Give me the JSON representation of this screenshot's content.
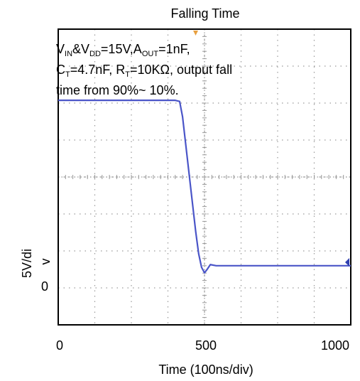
{
  "chart_data": {
    "type": "line",
    "title": "Falling Time",
    "xlabel": "Time (100ns/div)",
    "ylabel": "5V/div",
    "x_ticks": [
      "0",
      "500",
      "1000"
    ],
    "y_ticks": [
      "0"
    ],
    "xlim": [
      0,
      1000
    ],
    "ylim": [
      -1.1,
      4.3
    ],
    "grid": true,
    "annotation": {
      "line1": [
        "V",
        "IN",
        "&V",
        "DD",
        "=15V,A",
        "OUT",
        "=1nF,"
      ],
      "line2": [
        "C",
        "T",
        "=4.7nF, R",
        "T",
        "=10KΩ, output fall"
      ],
      "line3": "time from 90%~ 10%."
    },
    "series": [
      {
        "color": "#4a55c8",
        "points": [
          [
            0,
            3.0
          ],
          [
            40,
            3.0
          ],
          [
            80,
            3.0
          ],
          [
            120,
            3.0
          ],
          [
            160,
            3.0
          ],
          [
            200,
            3.0
          ],
          [
            240,
            3.0
          ],
          [
            280,
            3.0
          ],
          [
            320,
            3.0
          ],
          [
            360,
            3.0
          ],
          [
            400,
            3.0
          ],
          [
            415,
            2.98
          ],
          [
            425,
            2.7
          ],
          [
            440,
            2.0
          ],
          [
            455,
            1.3
          ],
          [
            470,
            0.6
          ],
          [
            480,
            0.2
          ],
          [
            490,
            -0.05
          ],
          [
            500,
            -0.15
          ],
          [
            510,
            -0.08
          ],
          [
            520,
            0.0
          ],
          [
            540,
            -0.02
          ],
          [
            580,
            -0.02
          ],
          [
            640,
            -0.02
          ],
          [
            700,
            -0.02
          ],
          [
            760,
            -0.02
          ],
          [
            820,
            -0.02
          ],
          [
            880,
            -0.02
          ],
          [
            940,
            -0.02
          ],
          [
            1000,
            -0.02
          ]
        ]
      }
    ]
  }
}
